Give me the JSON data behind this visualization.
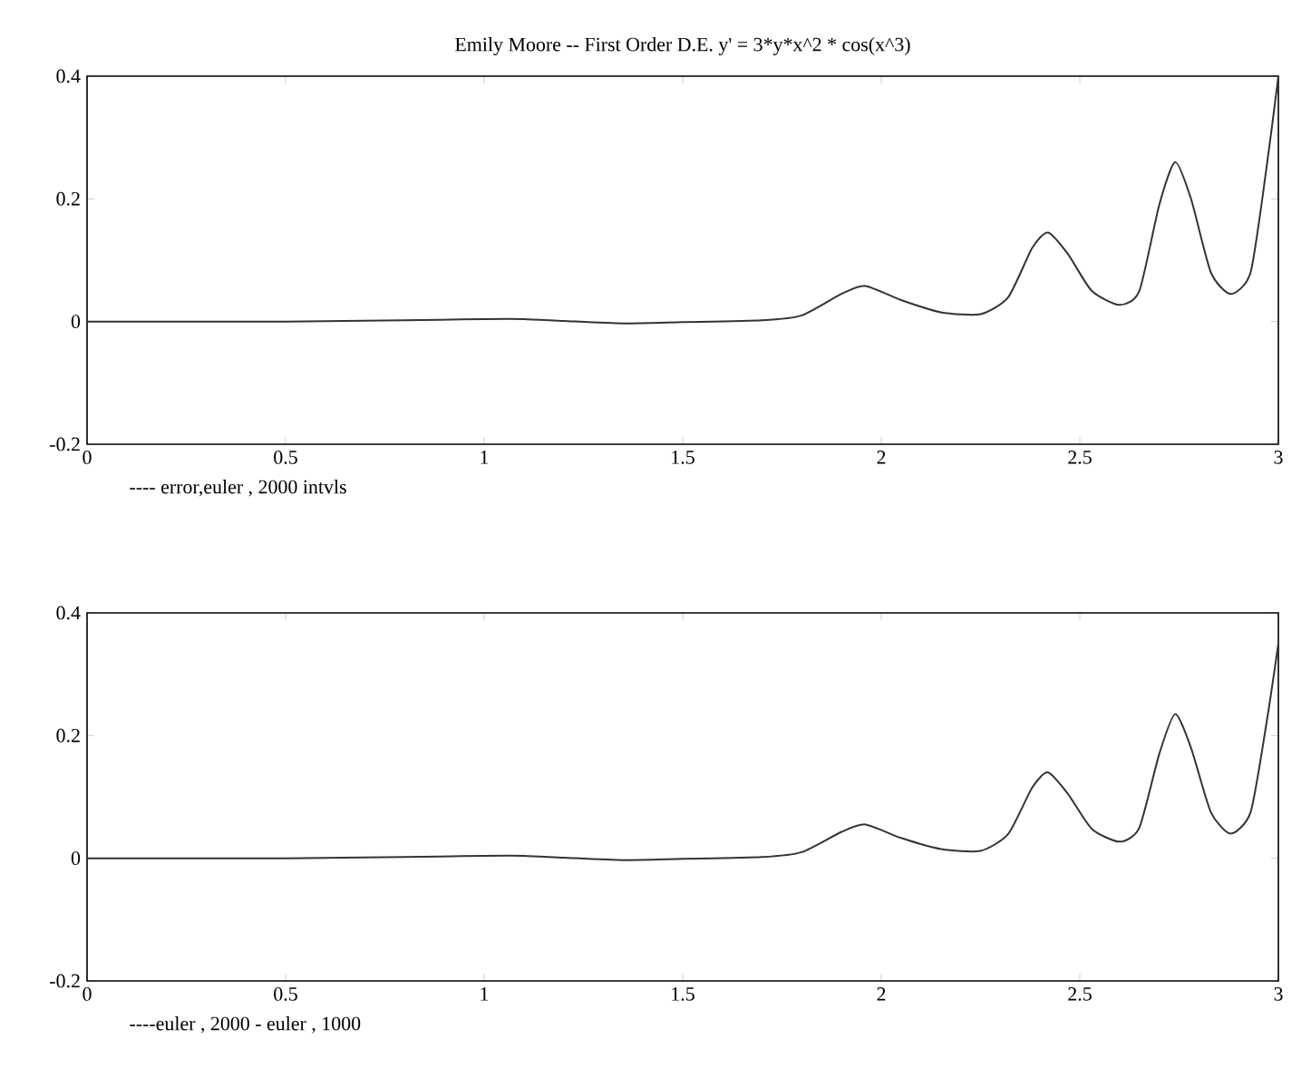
{
  "chart_data": [
    {
      "type": "line",
      "title": "Emily Moore -- First Order D.E.      y' = 3*y*x^2 * cos(x^3)",
      "xlabel": "---- error,euler , 2000 intvls",
      "x": [
        0,
        0.25,
        0.5,
        0.8,
        1.0,
        1.1,
        1.2,
        1.35,
        1.5,
        1.7,
        1.8,
        1.9,
        1.96,
        2.05,
        2.15,
        2.25,
        2.32,
        2.38,
        2.42,
        2.47,
        2.53,
        2.6,
        2.65,
        2.7,
        2.74,
        2.78,
        2.83,
        2.88,
        2.93,
        2.97,
        3.0
      ],
      "series": [
        {
          "color": "#333333",
          "values": [
            0,
            0,
            0,
            0.002,
            0.004,
            0.004,
            0.001,
            -0.003,
            -0.001,
            0.002,
            0.01,
            0.045,
            0.058,
            0.035,
            0.015,
            0.012,
            0.04,
            0.12,
            0.145,
            0.11,
            0.05,
            0.027,
            0.05,
            0.19,
            0.26,
            0.2,
            0.08,
            0.045,
            0.08,
            0.25,
            0.4
          ]
        }
      ],
      "xlim": [
        0,
        3
      ],
      "ylim": [
        -0.2,
        0.4
      ],
      "xticks": [
        0,
        0.5,
        1,
        1.5,
        2,
        2.5,
        3
      ],
      "yticks": [
        -0.2,
        0,
        0.2,
        0.4
      ]
    },
    {
      "type": "line",
      "xlabel": "----euler , 2000 - euler , 1000",
      "x": [
        0,
        0.25,
        0.5,
        0.8,
        1.0,
        1.1,
        1.2,
        1.35,
        1.5,
        1.7,
        1.8,
        1.9,
        1.96,
        2.05,
        2.15,
        2.25,
        2.32,
        2.38,
        2.42,
        2.47,
        2.53,
        2.6,
        2.65,
        2.7,
        2.74,
        2.78,
        2.83,
        2.88,
        2.93,
        2.97,
        3.0
      ],
      "series": [
        {
          "color": "#333333",
          "values": [
            0,
            0,
            0,
            0.002,
            0.004,
            0.004,
            0.001,
            -0.003,
            -0.001,
            0.002,
            0.01,
            0.043,
            0.055,
            0.033,
            0.015,
            0.012,
            0.04,
            0.115,
            0.14,
            0.105,
            0.048,
            0.027,
            0.05,
            0.17,
            0.235,
            0.18,
            0.075,
            0.04,
            0.075,
            0.22,
            0.35
          ]
        }
      ],
      "xlim": [
        0,
        3
      ],
      "ylim": [
        -0.2,
        0.4
      ],
      "xticks": [
        0,
        0.5,
        1,
        1.5,
        2,
        2.5,
        3
      ],
      "yticks": [
        -0.2,
        0,
        0.2,
        0.4
      ]
    }
  ]
}
